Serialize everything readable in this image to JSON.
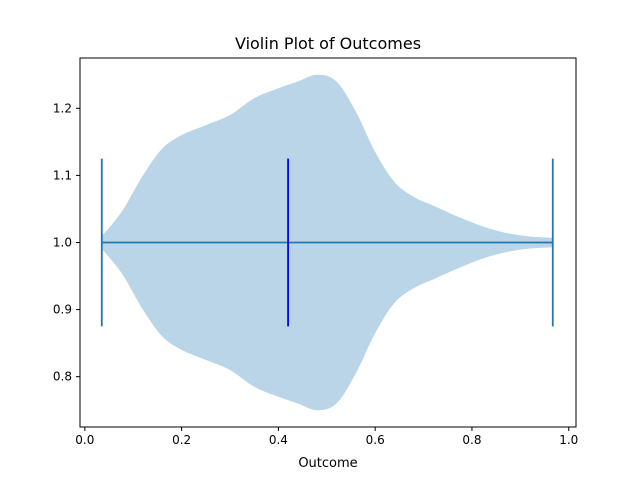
{
  "chart_data": {
    "type": "violin",
    "orientation": "horizontal",
    "title": "Violin Plot of Outcomes",
    "xlabel": "Outcome",
    "ylabel": "",
    "xlim": [
      -0.01,
      1.015
    ],
    "ylim": [
      0.725,
      1.275
    ],
    "xticks": [
      0.0,
      0.2,
      0.4,
      0.6,
      0.8,
      1.0
    ],
    "xtick_labels": [
      "0.0",
      "0.2",
      "0.4",
      "0.6",
      "0.8",
      "1.0"
    ],
    "yticks": [
      0.8,
      0.9,
      1.0,
      1.1,
      1.2
    ],
    "ytick_labels": [
      "0.8",
      "0.9",
      "1.0",
      "1.1",
      "1.2"
    ],
    "violin": {
      "position": 1.0,
      "min": 0.035,
      "max": 0.967,
      "median": 0.42,
      "extrema_half_width": 0.125,
      "density_profile": [
        {
          "x": 0.035,
          "h": 0.01
        },
        {
          "x": 0.05,
          "h": 0.022
        },
        {
          "x": 0.08,
          "h": 0.05
        },
        {
          "x": 0.12,
          "h": 0.1
        },
        {
          "x": 0.16,
          "h": 0.14
        },
        {
          "x": 0.2,
          "h": 0.16
        },
        {
          "x": 0.25,
          "h": 0.175
        },
        {
          "x": 0.3,
          "h": 0.19
        },
        {
          "x": 0.35,
          "h": 0.215
        },
        {
          "x": 0.4,
          "h": 0.23
        },
        {
          "x": 0.44,
          "h": 0.24
        },
        {
          "x": 0.48,
          "h": 0.25
        },
        {
          "x": 0.52,
          "h": 0.24
        },
        {
          "x": 0.56,
          "h": 0.195
        },
        {
          "x": 0.6,
          "h": 0.135
        },
        {
          "x": 0.64,
          "h": 0.09
        },
        {
          "x": 0.68,
          "h": 0.068
        },
        {
          "x": 0.72,
          "h": 0.055
        },
        {
          "x": 0.76,
          "h": 0.042
        },
        {
          "x": 0.8,
          "h": 0.03
        },
        {
          "x": 0.84,
          "h": 0.02
        },
        {
          "x": 0.88,
          "h": 0.013
        },
        {
          "x": 0.92,
          "h": 0.009
        },
        {
          "x": 0.967,
          "h": 0.007
        }
      ]
    },
    "colors": {
      "body": "#bad5e8",
      "lines": "#1f77b4",
      "median": "#0000ff",
      "axes": "#000000",
      "background": "#ffffff"
    },
    "grid": false,
    "legend": "none"
  }
}
